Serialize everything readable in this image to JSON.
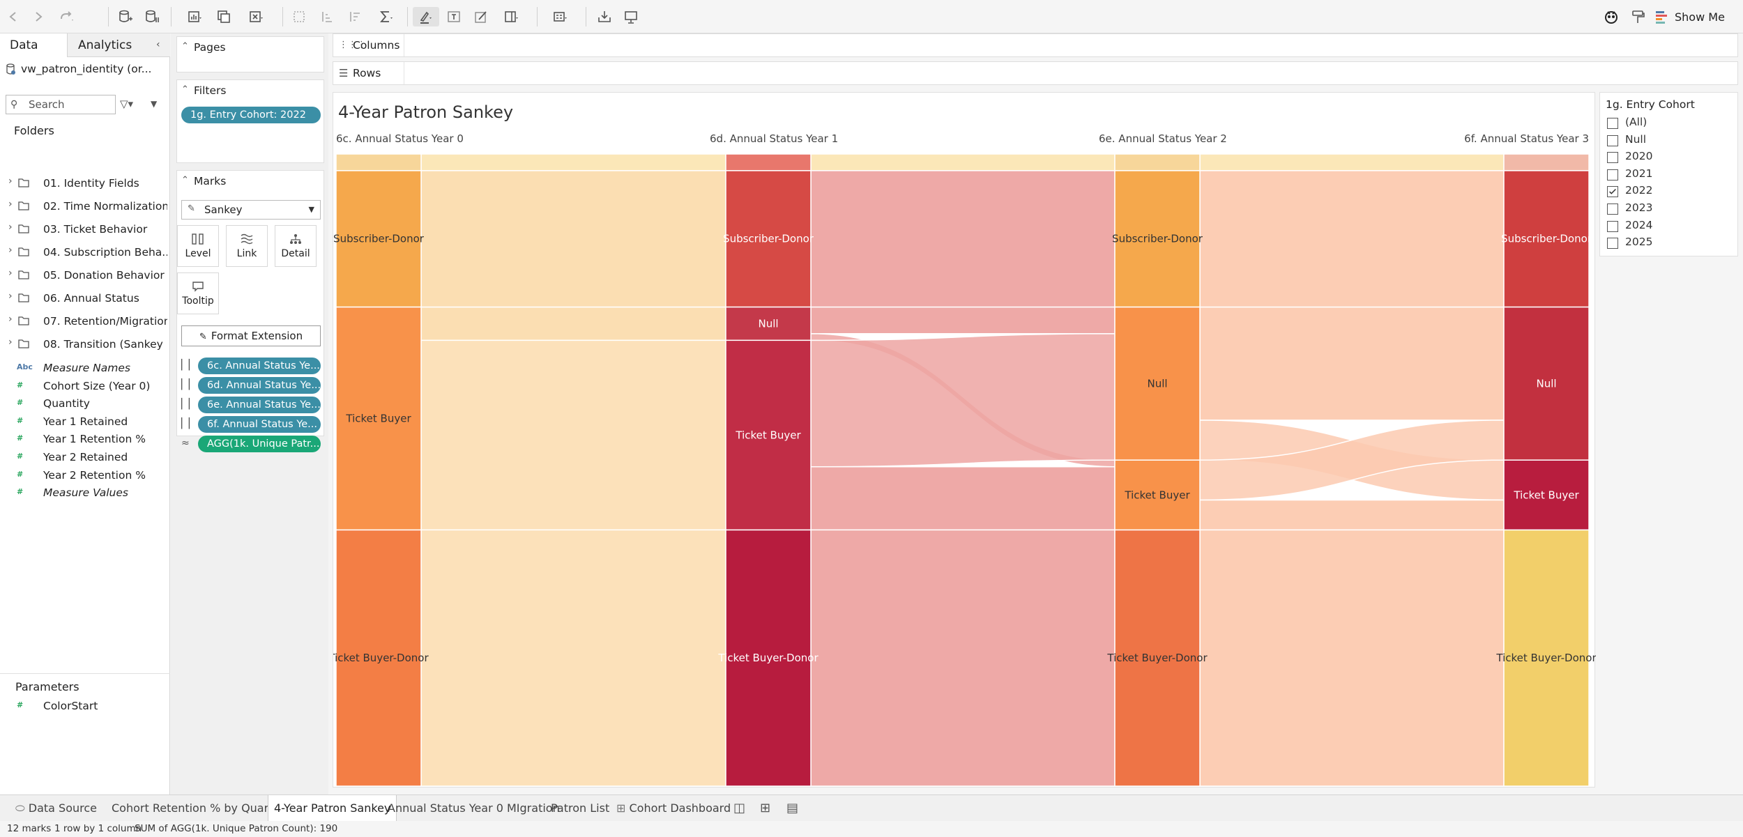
{
  "toolbar": {
    "show_me": "Show Me"
  },
  "left_pane": {
    "tabs": [
      {
        "label": "Data"
      },
      {
        "label": "Analytics"
      }
    ],
    "datasource": "vw_patron_identity (or...",
    "search_placeholder": "Search",
    "folders_title": "Folders",
    "folders": [
      "01. Identity Fields",
      "02. Time Normalization",
      "03. Ticket Behavior",
      "04. Subscription Beha...",
      "05. Donation Behavior",
      "06. Annual Status",
      "07. Retention/Migration",
      "08. Transition (Sankey ..."
    ],
    "measures": [
      {
        "icon": "Abc",
        "label": "Measure Names"
      },
      {
        "icon": "#",
        "label": "Cohort Size (Year 0)"
      },
      {
        "icon": "#",
        "label": "Quantity"
      },
      {
        "icon": "#",
        "label": "Year 1 Retained"
      },
      {
        "icon": "#",
        "label": "Year 1 Retention %"
      },
      {
        "icon": "#",
        "label": "Year 2 Retained"
      },
      {
        "icon": "#",
        "label": "Year 2 Retention %"
      },
      {
        "icon": "#",
        "label": "Measure Values"
      }
    ],
    "parameters_title": "Parameters",
    "parameters": [
      "ColorStart"
    ]
  },
  "cards": {
    "pages": "Pages",
    "filters": "Filters",
    "filter_pill": "1g. Entry Cohort: 2022",
    "marks": "Marks",
    "mark_type": "Sankey",
    "mark_buttons": [
      "Level",
      "Link",
      "Detail",
      "Tooltip"
    ],
    "format_extension": "Format Extension",
    "mark_pills": [
      "6c. Annual Status Ye...",
      "6d. Annual Status Ye...",
      "6e. Annual Status Ye...",
      "6f. Annual Status Ye...",
      "AGG(1k. Unique Patr..."
    ]
  },
  "shelves": {
    "columns": "Columns",
    "rows": "Rows"
  },
  "viz": {
    "title": "4-Year Patron Sankey",
    "stage_headers": [
      "6c. Annual Status Year 0",
      "6d. Annual Status Year 1",
      "6e. Annual Status Year 2",
      "6f. Annual Status Year 3"
    ]
  },
  "chart_data": {
    "type": "sankey",
    "title": "4-Year Patron Sankey",
    "stages": [
      "6c. Annual Status Year 0",
      "6d. Annual Status Year 1",
      "6e. Annual Status Year 2",
      "6f. Annual Status Year 3"
    ],
    "total": 190,
    "colors": {
      "subscriber": "#f5a84c",
      "ticket": "#f8924a",
      "ticket_donor": "#f37e45",
      "red1": "#d64a45",
      "red2": "#c12d46",
      "red3": "#b71c3e",
      "yellow": "#f2cf6a"
    },
    "nodes": [
      [
        {
          "label": "",
          "value": 5,
          "color": "#f7d69a"
        },
        {
          "label": "Subscriber-Donor",
          "value": 41,
          "color": "#f5a84c"
        },
        {
          "label": "Ticket Buyer",
          "value": 67,
          "color": "#f8924a"
        },
        {
          "label": "Ticket Buyer-Donor",
          "value": 77,
          "color": "#f37e45"
        }
      ],
      [
        {
          "label": "",
          "value": 5,
          "color": "#e8776c"
        },
        {
          "label": "Subscriber-Donor",
          "value": 41,
          "color": "#d64a45"
        },
        {
          "label": "Null",
          "value": 10,
          "color": "#c4394a"
        },
        {
          "label": "Ticket Buyer",
          "value": 57,
          "color": "#c12d46"
        },
        {
          "label": "Ticket Buyer-Donor",
          "value": 77,
          "color": "#b71c3e"
        }
      ],
      [
        {
          "label": "",
          "value": 5,
          "color": "#f7d69a"
        },
        {
          "label": "Subscriber-Donor",
          "value": 41,
          "color": "#f5a84c"
        },
        {
          "label": "Null",
          "value": 46,
          "color": "#f8924a"
        },
        {
          "label": "Ticket Buyer",
          "value": 21,
          "color": "#f8924a"
        },
        {
          "label": "Ticket Buyer-Donor",
          "value": 77,
          "color": "#ee7446"
        }
      ],
      [
        {
          "label": "",
          "value": 5,
          "color": "#f1b9a8"
        },
        {
          "label": "Subscriber-Donor",
          "value": 41,
          "color": "#cf3f3f"
        },
        {
          "label": "Null",
          "value": 46,
          "color": "#c2303f"
        },
        {
          "label": "Ticket Buyer",
          "value": 21,
          "color": "#b81d3e"
        },
        {
          "label": "Ticket Buyer-Donor",
          "value": 77,
          "color": "#f2cf6a"
        }
      ]
    ],
    "links": [
      {
        "stage": 0,
        "from": 0,
        "to": 0,
        "value": 5
      },
      {
        "stage": 0,
        "from": 1,
        "to": 1,
        "value": 41
      },
      {
        "stage": 0,
        "from": 2,
        "to": 2,
        "value": 10
      },
      {
        "stage": 0,
        "from": 2,
        "to": 3,
        "value": 57
      },
      {
        "stage": 0,
        "from": 3,
        "to": 4,
        "value": 77
      },
      {
        "stage": 1,
        "from": 0,
        "to": 0,
        "value": 5
      },
      {
        "stage": 1,
        "from": 1,
        "to": 1,
        "value": 41
      },
      {
        "stage": 1,
        "from": 2,
        "to": 2,
        "value": 8
      },
      {
        "stage": 1,
        "from": 2,
        "to": 3,
        "value": 2
      },
      {
        "stage": 1,
        "from": 3,
        "to": 2,
        "value": 38
      },
      {
        "stage": 1,
        "from": 3,
        "to": 3,
        "value": 19
      },
      {
        "stage": 1,
        "from": 4,
        "to": 4,
        "value": 77
      },
      {
        "stage": 2,
        "from": 0,
        "to": 0,
        "value": 5
      },
      {
        "stage": 2,
        "from": 1,
        "to": 1,
        "value": 41
      },
      {
        "stage": 2,
        "from": 2,
        "to": 2,
        "value": 34
      },
      {
        "stage": 2,
        "from": 2,
        "to": 3,
        "value": 12
      },
      {
        "stage": 2,
        "from": 3,
        "to": 2,
        "value": 12
      },
      {
        "stage": 2,
        "from": 3,
        "to": 3,
        "value": 9
      },
      {
        "stage": 2,
        "from": 4,
        "to": 4,
        "value": 77
      }
    ],
    "link_colors": [
      "#fbdcae",
      "#eda4a2",
      "#fccab0"
    ]
  },
  "filter_panel": {
    "title": "1g. Entry Cohort",
    "options": [
      {
        "label": "(All)",
        "checked": false
      },
      {
        "label": "Null",
        "checked": false
      },
      {
        "label": "2020",
        "checked": false
      },
      {
        "label": "2021",
        "checked": false
      },
      {
        "label": "2022",
        "checked": true
      },
      {
        "label": "2023",
        "checked": false
      },
      {
        "label": "2024",
        "checked": false
      },
      {
        "label": "2025",
        "checked": false
      }
    ]
  },
  "sheet_tabs": [
    {
      "label": "Data Source",
      "active": false
    },
    {
      "label": "Cohort Retention % by Quarter",
      "active": false
    },
    {
      "label": "4-Year Patron Sankey",
      "active": true
    },
    {
      "label": "Annual Status Year 0 MIgration",
      "active": false
    },
    {
      "label": "Patron List",
      "active": false
    },
    {
      "label": "Cohort Dashboard",
      "active": false
    }
  ],
  "status_bar": {
    "marks": "12 marks",
    "layout": "1 row by 1 column",
    "sum": "SUM of AGG(1k. Unique Patron Count): 190"
  }
}
